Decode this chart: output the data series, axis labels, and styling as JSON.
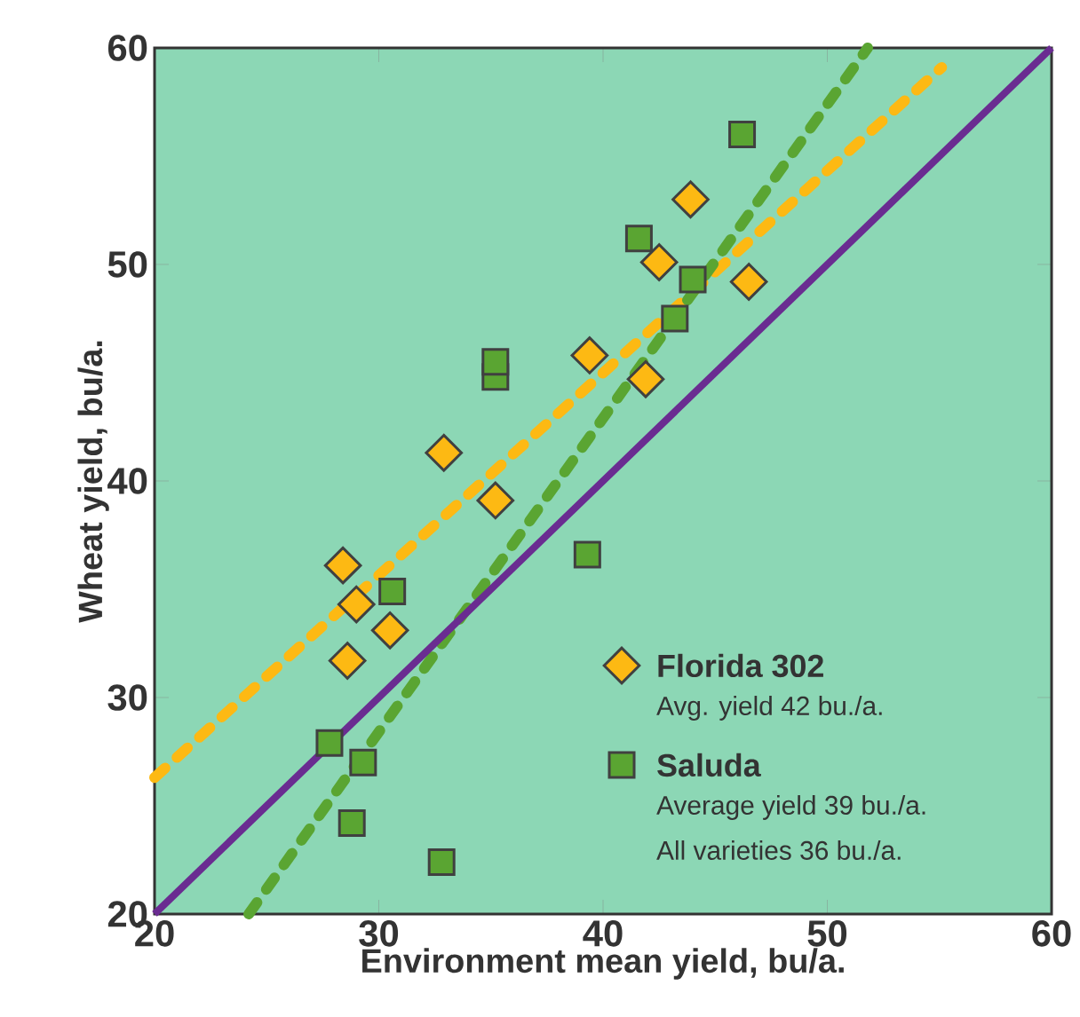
{
  "chart_data": {
    "type": "scatter",
    "xlabel": "Environment mean yield, bu/a.",
    "ylabel": "Wheat yield, bu/a.",
    "xlim": [
      20,
      60
    ],
    "ylim": [
      20,
      60
    ],
    "xticks": [
      20,
      30,
      40,
      50,
      60
    ],
    "yticks": [
      20,
      30,
      40,
      50,
      60
    ],
    "legend": "bottom right",
    "annotations": [
      "Avg. yield 42 bu./a.",
      "Average yield 39 bu./a.",
      "All varieties 36 bu./a."
    ],
    "series": [
      {
        "name": "Florida 302",
        "marker": "diamond",
        "color": "#fdb913",
        "x": [
          28.4,
          29.0,
          28.6,
          30.5,
          32.9,
          35.2,
          39.4,
          41.9,
          42.5,
          43.9,
          46.5
        ],
        "values": [
          36.1,
          34.3,
          31.7,
          33.1,
          41.3,
          39.1,
          45.8,
          44.7,
          50.1,
          53.0,
          49.2
        ]
      },
      {
        "name": "Saluda",
        "marker": "square",
        "color": "#5aa532",
        "x": [
          27.8,
          29.3,
          28.8,
          32.8,
          30.6,
          35.2,
          35.2,
          39.3,
          41.6,
          44.0,
          43.2,
          46.2
        ],
        "values": [
          27.9,
          27.0,
          24.2,
          22.4,
          34.9,
          44.8,
          45.5,
          36.6,
          51.2,
          49.3,
          47.5,
          56.0
        ]
      },
      {
        "type": "line",
        "line_style": "dashed",
        "color": "#fdb913",
        "x": [
          20,
          55.1
        ],
        "values": [
          26.3,
          59.1
        ]
      },
      {
        "type": "line",
        "line_style": "dashed",
        "color": "#5aa532",
        "x": [
          24.2,
          51.8
        ],
        "values": [
          20,
          60
        ]
      },
      {
        "type": "line",
        "line_style": "solid",
        "color": "#6a2c91",
        "x": [
          20,
          60
        ],
        "values": [
          20,
          60
        ]
      }
    ]
  }
}
